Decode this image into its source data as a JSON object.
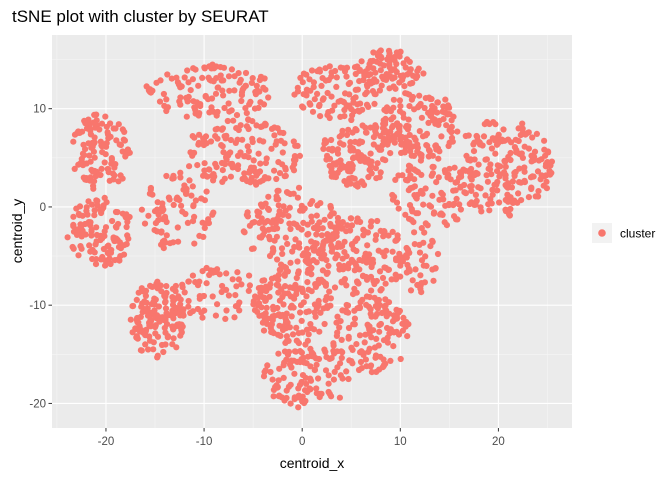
{
  "chart_data": {
    "type": "scatter",
    "title": "tSNE plot with cluster by SEURAT",
    "xlabel": "centroid_x",
    "ylabel": "centroid_y",
    "xlim": [
      -25.5,
      27.5
    ],
    "ylim": [
      -22.5,
      17.5
    ],
    "x_ticks": [
      -20,
      -10,
      0,
      10,
      20
    ],
    "x_tick_labels": [
      "-20",
      "-10",
      "0",
      "10",
      "20"
    ],
    "y_ticks": [
      -20,
      -10,
      0,
      10
    ],
    "y_tick_labels": [
      "-20",
      "-10",
      "0",
      "10"
    ],
    "grid": true,
    "legend_position": "right",
    "series": [
      {
        "name": "cluster",
        "color": "#F8766D",
        "regions": [
          {
            "x": [
              -23.5,
              -17.5
            ],
            "y": [
              1.5,
              9.5
            ],
            "count": 110
          },
          {
            "x": [
              -24.0,
              -17.0
            ],
            "y": [
              -6.0,
              1.0
            ],
            "count": 110
          },
          {
            "x": [
              -17.5,
              -12.0
            ],
            "y": [
              -15.5,
              -7.5
            ],
            "count": 140
          },
          {
            "x": [
              -13.5,
              -3.0
            ],
            "y": [
              -11.5,
              -6.0
            ],
            "count": 70
          },
          {
            "x": [
              -16.5,
              -9.0
            ],
            "y": [
              -4.5,
              3.5
            ],
            "count": 80
          },
          {
            "x": [
              -16.0,
              -3.0
            ],
            "y": [
              9.0,
              14.5
            ],
            "count": 120
          },
          {
            "x": [
              -12.0,
              0.0
            ],
            "y": [
              2.0,
              9.0
            ],
            "count": 150
          },
          {
            "x": [
              -6.0,
              4.0
            ],
            "y": [
              -6.0,
              2.0
            ],
            "count": 140
          },
          {
            "x": [
              -1.0,
              8.0
            ],
            "y": [
              9.0,
              14.5
            ],
            "count": 100
          },
          {
            "x": [
              5.5,
              12.5
            ],
            "y": [
              12.0,
              16.0
            ],
            "count": 80
          },
          {
            "x": [
              8.0,
              16.0
            ],
            "y": [
              5.0,
              12.0
            ],
            "count": 150
          },
          {
            "x": [
              2.0,
              9.0
            ],
            "y": [
              2.0,
              9.0
            ],
            "count": 120
          },
          {
            "x": [
              15.5,
              25.5
            ],
            "y": [
              -1.0,
              9.0
            ],
            "count": 190
          },
          {
            "x": [
              9.0,
              18.0
            ],
            "y": [
              -2.0,
              5.0
            ],
            "count": 100
          },
          {
            "x": [
              0.0,
              11.0
            ],
            "y": [
              -9.0,
              -1.0
            ],
            "count": 170
          },
          {
            "x": [
              -5.0,
              3.0
            ],
            "y": [
              -14.0,
              -6.0
            ],
            "count": 150
          },
          {
            "x": [
              -4.0,
              5.0
            ],
            "y": [
              -20.5,
              -14.0
            ],
            "count": 110
          },
          {
            "x": [
              3.0,
              11.0
            ],
            "y": [
              -17.0,
              -9.0
            ],
            "count": 130
          },
          {
            "x": [
              9.0,
              14.0
            ],
            "y": [
              -9.0,
              -2.0
            ],
            "count": 40
          }
        ]
      }
    ]
  }
}
